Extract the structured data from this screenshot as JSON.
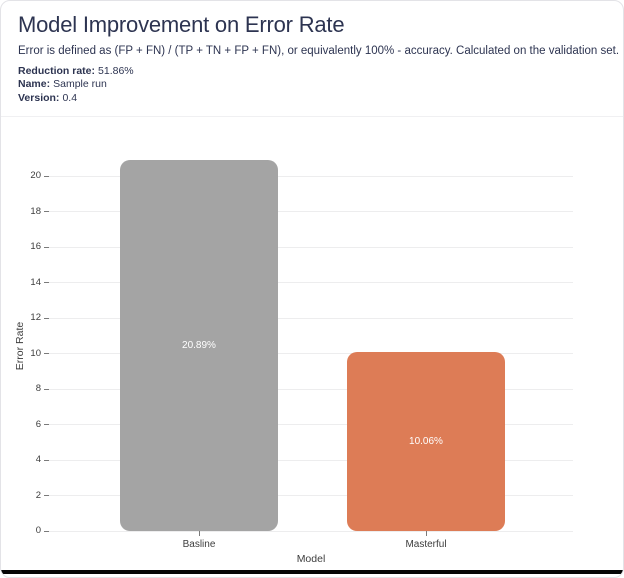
{
  "header": {
    "title": "Model Improvement on Error Rate",
    "subtitle": "Error is defined as (FP + FN) / (TP + TN + FP + FN), or equivalently 100% - accuracy. Calculated on the validation set.",
    "meta": [
      {
        "label": "Reduction rate:",
        "value": "51.86%"
      },
      {
        "label": "Name:",
        "value": "Sample run"
      },
      {
        "label": "Version:",
        "value": "0.4"
      }
    ]
  },
  "chart_data": {
    "type": "bar",
    "categories": [
      "Basline",
      "Masterful"
    ],
    "values": [
      20.89,
      10.06
    ],
    "bar_labels": [
      "20.89%",
      "10.06%"
    ],
    "bar_colors": [
      "#a4a4a4",
      "#dd7c56"
    ],
    "bar_label_color": "#ffffff",
    "xlabel": "Model",
    "ylabel": "Error Rate",
    "ylim": [
      0,
      21
    ],
    "yticks": [
      0,
      2,
      4,
      6,
      8,
      10,
      12,
      14,
      16,
      18,
      20
    ],
    "grid": true,
    "gridline_color": "#ededee",
    "axis_text_color": "#3d3d3d",
    "legend": "none"
  }
}
